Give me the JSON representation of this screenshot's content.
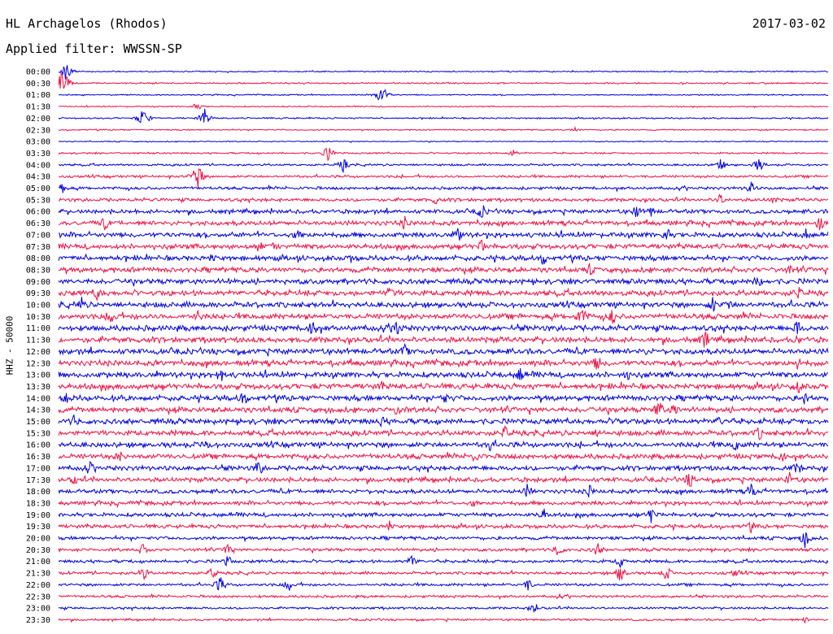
{
  "header": {
    "station": "HL Archagelos (Rhodos)",
    "date": "2017-03-02",
    "filter": "Applied filter: WWSSN-SP"
  },
  "colors": {
    "trace_a": "#0000dd",
    "trace_b": "#ee1144"
  },
  "chart_data": {
    "type": "line",
    "title": "HL Archagelos (Rhodos)",
    "ylabel": "HHZ - 50000",
    "rows": [
      "00:00",
      "00:30",
      "01:00",
      "01:30",
      "02:00",
      "02:30",
      "03:00",
      "03:30",
      "04:00",
      "04:30",
      "05:00",
      "05:30",
      "06:00",
      "06:30",
      "07:00",
      "07:30",
      "08:00",
      "08:30",
      "09:00",
      "09:30",
      "10:00",
      "10:30",
      "11:00",
      "11:30",
      "12:00",
      "12:30",
      "13:00",
      "13:30",
      "14:00",
      "14:30",
      "15:00",
      "15:30",
      "16:00",
      "16:30",
      "17:00",
      "17:30",
      "18:00",
      "18:30",
      "19:00",
      "19:30",
      "20:00",
      "20:30",
      "21:00",
      "21:30",
      "22:00",
      "22:30",
      "23:00",
      "23:30"
    ],
    "row_colors": [
      "trace_a",
      "trace_b"
    ],
    "activity": [
      0.6,
      0.7,
      0.6,
      0.6,
      0.7,
      0.6,
      0.5,
      0.8,
      1.0,
      1.2,
      1.4,
      1.6,
      2.0,
      2.2,
      2.4,
      2.4,
      2.4,
      2.5,
      2.5,
      2.6,
      2.6,
      2.6,
      2.7,
      2.7,
      2.7,
      2.7,
      2.7,
      2.7,
      2.6,
      2.6,
      2.6,
      2.5,
      2.5,
      2.4,
      2.3,
      2.2,
      2.0,
      1.9,
      1.9,
      1.8,
      1.6,
      1.5,
      1.5,
      1.4,
      1.3,
      1.2,
      1.1,
      1.0
    ],
    "events": [
      [
        [
          0.01,
          14
        ]
      ],
      [
        [
          0.005,
          18
        ],
        [
          0.012,
          9
        ]
      ],
      [
        [
          0.42,
          16
        ]
      ],
      [
        [
          0.18,
          5
        ]
      ],
      [
        [
          0.11,
          14
        ],
        [
          0.19,
          12
        ]
      ],
      [
        [
          0.67,
          4
        ]
      ],
      [],
      [
        [
          0.35,
          10
        ],
        [
          0.59,
          5
        ]
      ],
      [
        [
          0.37,
          9
        ],
        [
          0.86,
          9
        ],
        [
          0.91,
          11
        ]
      ],
      [
        [
          0.18,
          20
        ]
      ],
      [
        [
          0.005,
          7
        ],
        [
          0.9,
          8
        ]
      ],
      [
        [
          0.49,
          6
        ],
        [
          0.86,
          8
        ],
        [
          0.93,
          6
        ]
      ],
      [
        [
          0.55,
          12
        ],
        [
          0.75,
          10
        ],
        [
          0.77,
          8
        ]
      ],
      [
        [
          0.06,
          11
        ],
        [
          0.45,
          9
        ],
        [
          0.99,
          14
        ]
      ],
      [
        [
          0.31,
          11
        ],
        [
          0.52,
          10
        ],
        [
          0.79,
          10
        ],
        [
          0.97,
          10
        ]
      ],
      [
        [
          0.26,
          10
        ],
        [
          0.28,
          8
        ],
        [
          0.55,
          10
        ]
      ],
      [
        [
          0.2,
          8
        ],
        [
          0.38,
          6
        ],
        [
          0.63,
          10
        ]
      ],
      [
        [
          0.69,
          10
        ],
        [
          0.95,
          9
        ]
      ],
      [
        [
          0.22,
          7
        ],
        [
          0.91,
          12
        ]
      ],
      [
        [
          0.05,
          10
        ],
        [
          0.43,
          10
        ],
        [
          0.96,
          12
        ]
      ],
      [
        [
          0.03,
          10
        ],
        [
          0.85,
          12
        ],
        [
          0.87,
          10
        ]
      ],
      [
        [
          0.07,
          14
        ],
        [
          0.18,
          10
        ],
        [
          0.68,
          16
        ],
        [
          0.72,
          12
        ]
      ],
      [
        [
          0.33,
          14
        ],
        [
          0.44,
          12
        ],
        [
          0.96,
          12
        ]
      ],
      [
        [
          0.84,
          14
        ],
        [
          0.96,
          8
        ]
      ],
      [
        [
          0.45,
          10
        ],
        [
          0.76,
          8
        ]
      ],
      [
        [
          0.7,
          12
        ],
        [
          0.96,
          10
        ]
      ],
      [
        [
          0.21,
          12
        ],
        [
          0.6,
          10
        ],
        [
          0.74,
          8
        ]
      ],
      [
        [
          0.42,
          8
        ],
        [
          0.96,
          12
        ]
      ],
      [
        [
          0.01,
          10
        ],
        [
          0.24,
          12
        ],
        [
          0.5,
          10
        ],
        [
          0.97,
          10
        ]
      ],
      [
        [
          0.44,
          10
        ],
        [
          0.78,
          14
        ],
        [
          0.8,
          10
        ]
      ],
      [
        [
          0.02,
          10
        ],
        [
          0.42,
          8
        ],
        [
          0.73,
          10
        ],
        [
          0.86,
          10
        ]
      ],
      [
        [
          0.58,
          10
        ],
        [
          0.7,
          8
        ],
        [
          0.91,
          10
        ]
      ],
      [
        [
          0.19,
          10
        ],
        [
          0.56,
          10
        ],
        [
          0.88,
          10
        ]
      ],
      [
        [
          0.08,
          10
        ],
        [
          0.54,
          10
        ],
        [
          0.94,
          10
        ]
      ],
      [
        [
          0.04,
          10
        ],
        [
          0.26,
          12
        ],
        [
          0.96,
          10
        ]
      ],
      [
        [
          0.02,
          8
        ],
        [
          0.82,
          12
        ],
        [
          0.95,
          10
        ]
      ],
      [
        [
          0.61,
          12
        ],
        [
          0.69,
          10
        ],
        [
          0.9,
          12
        ]
      ],
      [
        [
          0.54,
          8
        ]
      ],
      [
        [
          0.63,
          10
        ],
        [
          0.77,
          12
        ]
      ],
      [
        [
          0.43,
          8
        ],
        [
          0.9,
          8
        ]
      ],
      [
        [
          0.97,
          14
        ]
      ],
      [
        [
          0.11,
          10
        ],
        [
          0.22,
          10
        ],
        [
          0.65,
          10
        ],
        [
          0.7,
          10
        ]
      ],
      [
        [
          0.22,
          8
        ],
        [
          0.46,
          10
        ],
        [
          0.73,
          8
        ]
      ],
      [
        [
          0.11,
          10
        ],
        [
          0.2,
          8
        ],
        [
          0.73,
          12
        ],
        [
          0.79,
          10
        ],
        [
          0.88,
          8
        ]
      ],
      [
        [
          0.21,
          12
        ],
        [
          0.3,
          10
        ],
        [
          0.61,
          8
        ]
      ],
      [
        [
          0.65,
          4
        ]
      ],
      [
        [
          0.62,
          8
        ]
      ],
      [
        [
          0.97,
          4
        ]
      ]
    ]
  }
}
